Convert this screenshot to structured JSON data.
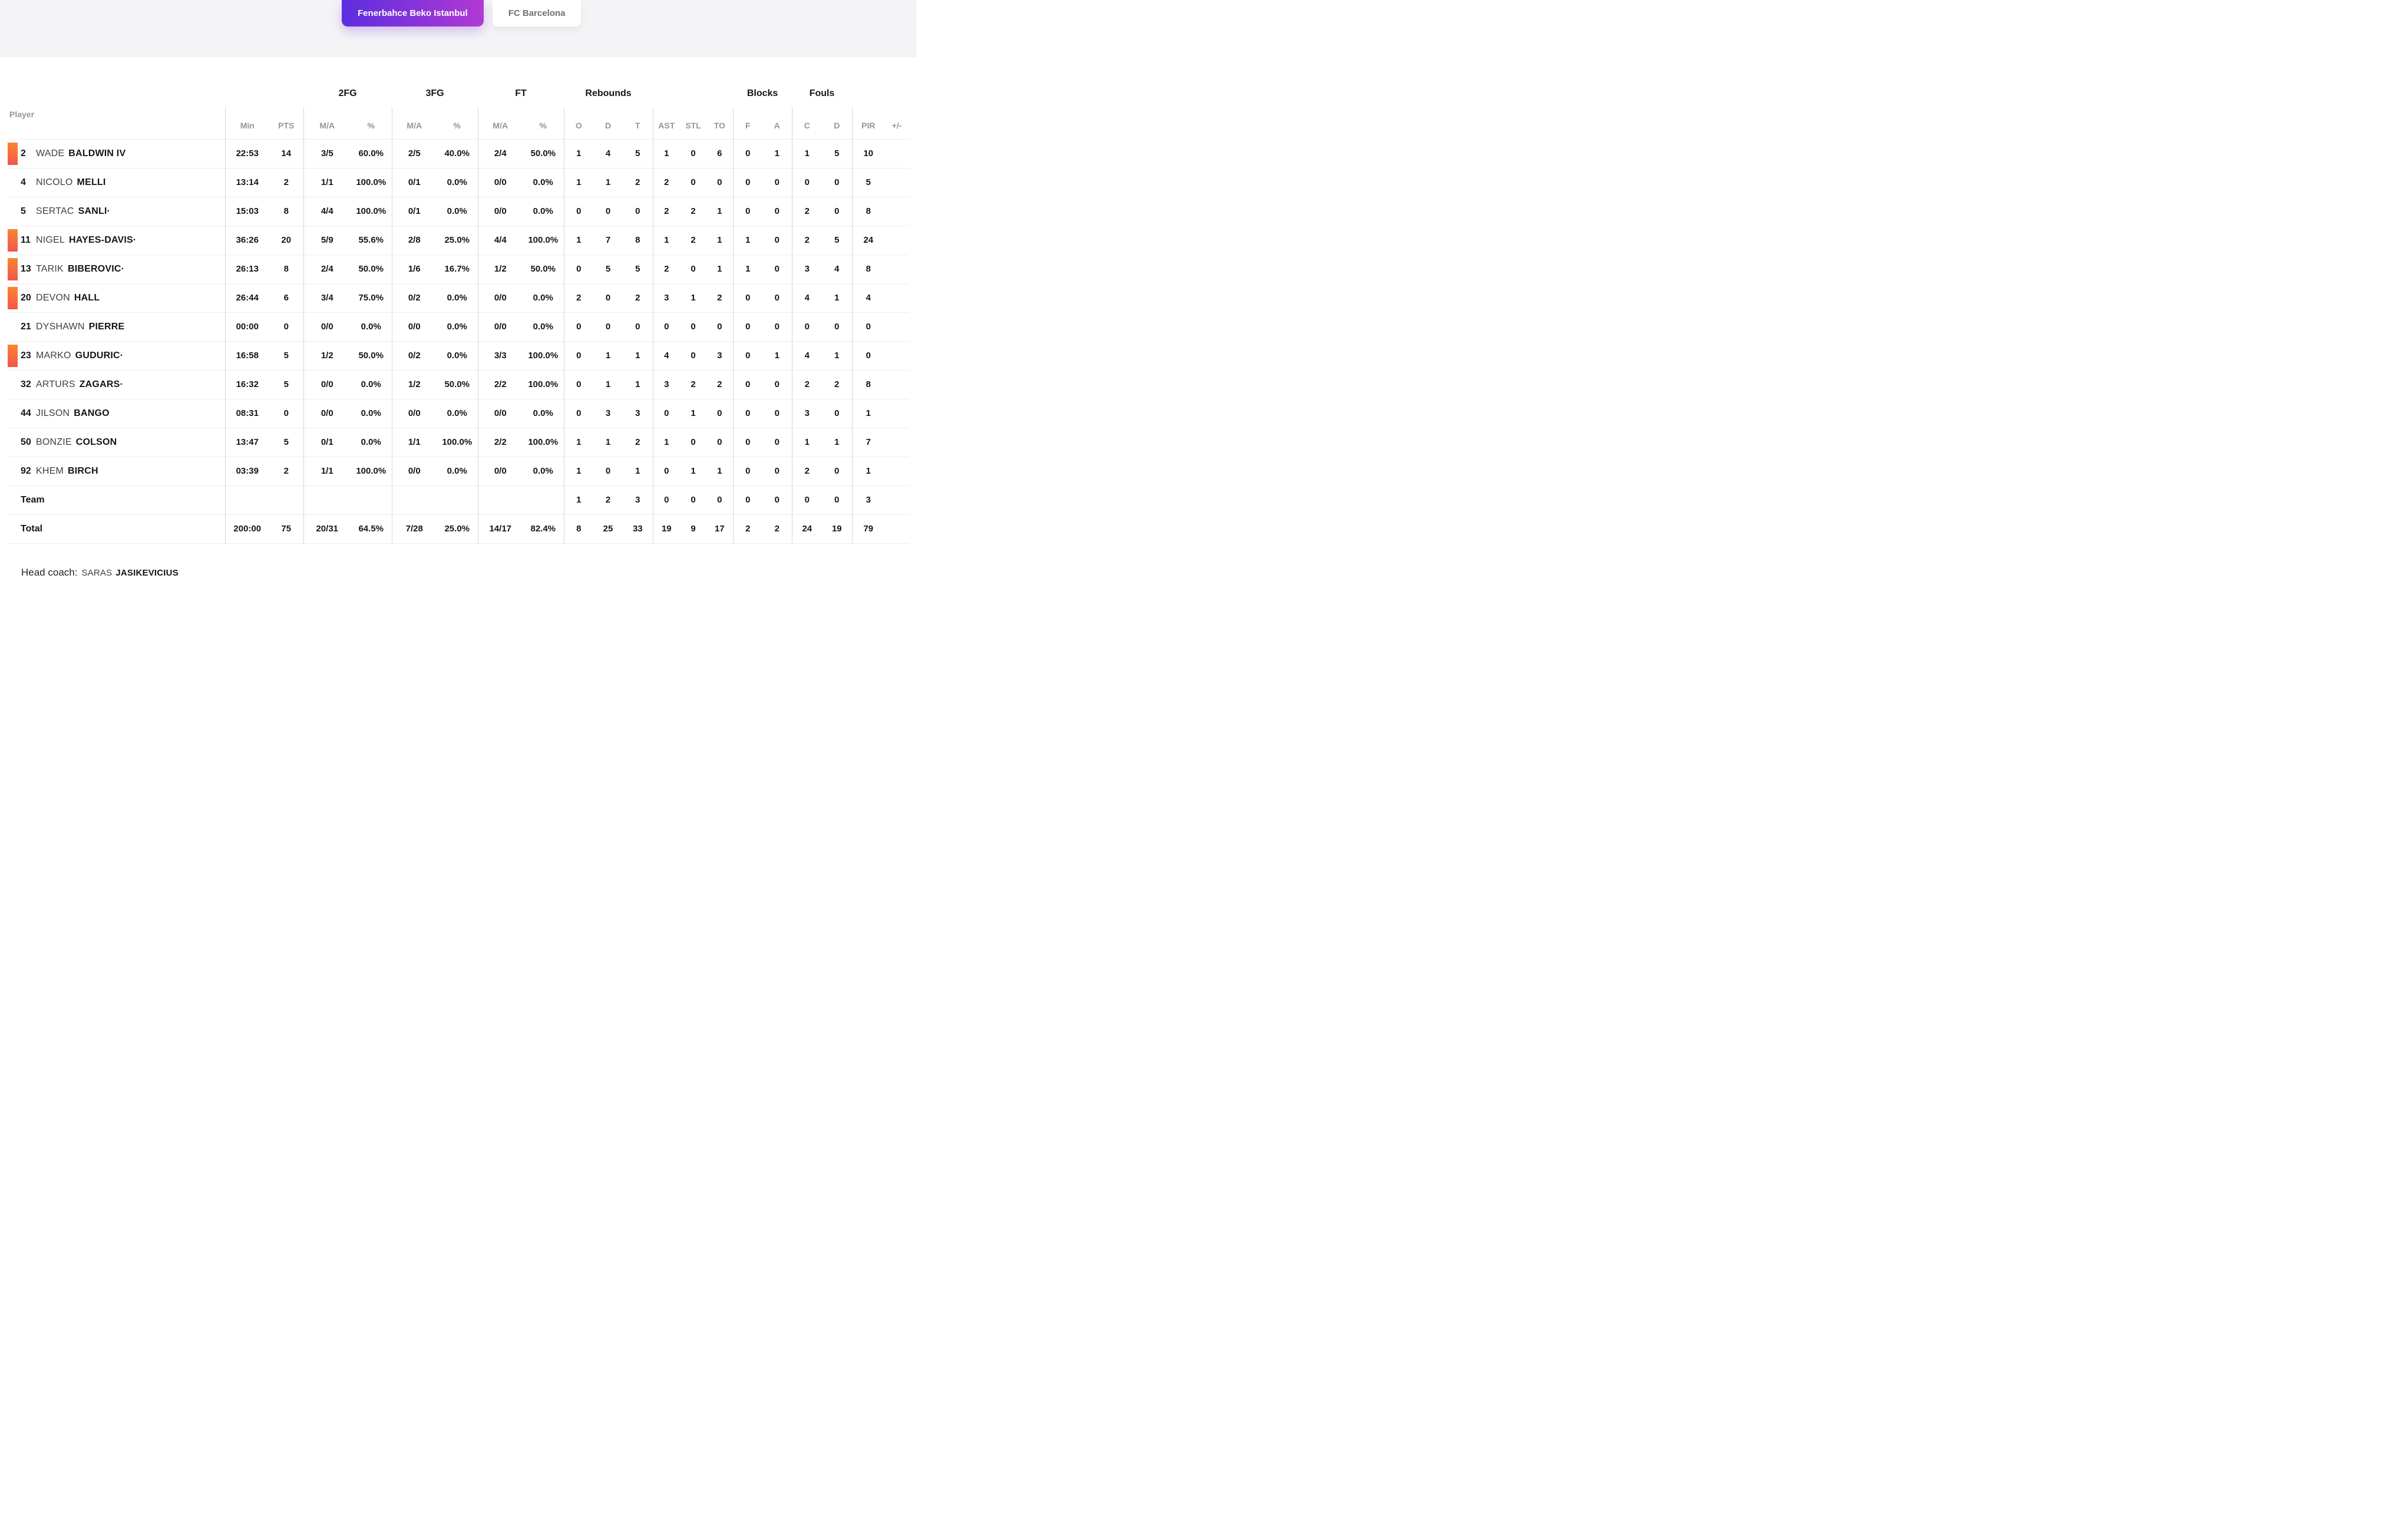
{
  "tabs": [
    {
      "label": "Fenerbahce Beko Istanbul",
      "active": true
    },
    {
      "label": "FC Barcelona",
      "active": false
    }
  ],
  "table": {
    "group_headers": [
      "2FG",
      "3FG",
      "FT",
      "Rebounds",
      "Blocks",
      "Fouls"
    ],
    "columns": {
      "player": "Player",
      "min": "Min",
      "pts": "PTS",
      "ma": "M/A",
      "pct": "%",
      "reb_o": "O",
      "reb_d": "D",
      "reb_t": "T",
      "ast": "AST",
      "stl": "STL",
      "to": "TO",
      "blk_f": "F",
      "blk_a": "A",
      "foul_c": "C",
      "foul_d": "D",
      "pir": "PIR",
      "plus_minus": "+/-"
    },
    "rows": [
      {
        "type": "player",
        "number": "2",
        "first": "WADE",
        "last": "BALDWIN IV",
        "starter": true,
        "min": "22:53",
        "pts": "14",
        "fg2": "3/5",
        "fg2pct": "60.0%",
        "fg3": "2/5",
        "fg3pct": "40.0%",
        "ft": "2/4",
        "ftpct": "50.0%",
        "ro": "1",
        "rd": "4",
        "rt": "5",
        "ast": "1",
        "stl": "0",
        "to": "6",
        "bf": "0",
        "ba": "1",
        "fc": "1",
        "fd": "5",
        "pir": "10",
        "pm": ""
      },
      {
        "type": "player",
        "number": "4",
        "first": "NICOLO",
        "last": "MELLI",
        "starter": false,
        "min": "13:14",
        "pts": "2",
        "fg2": "1/1",
        "fg2pct": "100.0%",
        "fg3": "0/1",
        "fg3pct": "0.0%",
        "ft": "0/0",
        "ftpct": "0.0%",
        "ro": "1",
        "rd": "1",
        "rt": "2",
        "ast": "2",
        "stl": "0",
        "to": "0",
        "bf": "0",
        "ba": "0",
        "fc": "0",
        "fd": "0",
        "pir": "5",
        "pm": ""
      },
      {
        "type": "player",
        "number": "5",
        "first": "SERTAC",
        "last": "SANLI·",
        "starter": false,
        "min": "15:03",
        "pts": "8",
        "fg2": "4/4",
        "fg2pct": "100.0%",
        "fg3": "0/1",
        "fg3pct": "0.0%",
        "ft": "0/0",
        "ftpct": "0.0%",
        "ro": "0",
        "rd": "0",
        "rt": "0",
        "ast": "2",
        "stl": "2",
        "to": "1",
        "bf": "0",
        "ba": "0",
        "fc": "2",
        "fd": "0",
        "pir": "8",
        "pm": ""
      },
      {
        "type": "player",
        "number": "11",
        "first": "NIGEL",
        "last": "HAYES-DAVIS·",
        "starter": true,
        "min": "36:26",
        "pts": "20",
        "fg2": "5/9",
        "fg2pct": "55.6%",
        "fg3": "2/8",
        "fg3pct": "25.0%",
        "ft": "4/4",
        "ftpct": "100.0%",
        "ro": "1",
        "rd": "7",
        "rt": "8",
        "ast": "1",
        "stl": "2",
        "to": "1",
        "bf": "1",
        "ba": "0",
        "fc": "2",
        "fd": "5",
        "pir": "24",
        "pm": ""
      },
      {
        "type": "player",
        "number": "13",
        "first": "TARIK",
        "last": "BIBEROVIC·",
        "starter": true,
        "min": "26:13",
        "pts": "8",
        "fg2": "2/4",
        "fg2pct": "50.0%",
        "fg3": "1/6",
        "fg3pct": "16.7%",
        "ft": "1/2",
        "ftpct": "50.0%",
        "ro": "0",
        "rd": "5",
        "rt": "5",
        "ast": "2",
        "stl": "0",
        "to": "1",
        "bf": "1",
        "ba": "0",
        "fc": "3",
        "fd": "4",
        "pir": "8",
        "pm": ""
      },
      {
        "type": "player",
        "number": "20",
        "first": "DEVON",
        "last": "HALL",
        "starter": true,
        "min": "26:44",
        "pts": "6",
        "fg2": "3/4",
        "fg2pct": "75.0%",
        "fg3": "0/2",
        "fg3pct": "0.0%",
        "ft": "0/0",
        "ftpct": "0.0%",
        "ro": "2",
        "rd": "0",
        "rt": "2",
        "ast": "3",
        "stl": "1",
        "to": "2",
        "bf": "0",
        "ba": "0",
        "fc": "4",
        "fd": "1",
        "pir": "4",
        "pm": ""
      },
      {
        "type": "player",
        "number": "21",
        "first": "DYSHAWN",
        "last": "PIERRE",
        "starter": false,
        "min": "00:00",
        "pts": "0",
        "fg2": "0/0",
        "fg2pct": "0.0%",
        "fg3": "0/0",
        "fg3pct": "0.0%",
        "ft": "0/0",
        "ftpct": "0.0%",
        "ro": "0",
        "rd": "0",
        "rt": "0",
        "ast": "0",
        "stl": "0",
        "to": "0",
        "bf": "0",
        "ba": "0",
        "fc": "0",
        "fd": "0",
        "pir": "0",
        "pm": ""
      },
      {
        "type": "player",
        "number": "23",
        "first": "MARKO",
        "last": "GUDURIC·",
        "starter": true,
        "min": "16:58",
        "pts": "5",
        "fg2": "1/2",
        "fg2pct": "50.0%",
        "fg3": "0/2",
        "fg3pct": "0.0%",
        "ft": "3/3",
        "ftpct": "100.0%",
        "ro": "0",
        "rd": "1",
        "rt": "1",
        "ast": "4",
        "stl": "0",
        "to": "3",
        "bf": "0",
        "ba": "1",
        "fc": "4",
        "fd": "1",
        "pir": "0",
        "pm": ""
      },
      {
        "type": "player",
        "number": "32",
        "first": "ARTURS",
        "last": "ZAGARS·",
        "starter": false,
        "min": "16:32",
        "pts": "5",
        "fg2": "0/0",
        "fg2pct": "0.0%",
        "fg3": "1/2",
        "fg3pct": "50.0%",
        "ft": "2/2",
        "ftpct": "100.0%",
        "ro": "0",
        "rd": "1",
        "rt": "1",
        "ast": "3",
        "stl": "2",
        "to": "2",
        "bf": "0",
        "ba": "0",
        "fc": "2",
        "fd": "2",
        "pir": "8",
        "pm": ""
      },
      {
        "type": "player",
        "number": "44",
        "first": "JILSON",
        "last": "BANGO",
        "starter": false,
        "min": "08:31",
        "pts": "0",
        "fg2": "0/0",
        "fg2pct": "0.0%",
        "fg3": "0/0",
        "fg3pct": "0.0%",
        "ft": "0/0",
        "ftpct": "0.0%",
        "ro": "0",
        "rd": "3",
        "rt": "3",
        "ast": "0",
        "stl": "1",
        "to": "0",
        "bf": "0",
        "ba": "0",
        "fc": "3",
        "fd": "0",
        "pir": "1",
        "pm": ""
      },
      {
        "type": "player",
        "number": "50",
        "first": "BONZIE",
        "last": "COLSON",
        "starter": false,
        "min": "13:47",
        "pts": "5",
        "fg2": "0/1",
        "fg2pct": "0.0%",
        "fg3": "1/1",
        "fg3pct": "100.0%",
        "ft": "2/2",
        "ftpct": "100.0%",
        "ro": "1",
        "rd": "1",
        "rt": "2",
        "ast": "1",
        "stl": "0",
        "to": "0",
        "bf": "0",
        "ba": "0",
        "fc": "1",
        "fd": "1",
        "pir": "7",
        "pm": ""
      },
      {
        "type": "player",
        "number": "92",
        "first": "KHEM",
        "last": "BIRCH",
        "starter": false,
        "min": "03:39",
        "pts": "2",
        "fg2": "1/1",
        "fg2pct": "100.0%",
        "fg3": "0/0",
        "fg3pct": "0.0%",
        "ft": "0/0",
        "ftpct": "0.0%",
        "ro": "1",
        "rd": "0",
        "rt": "1",
        "ast": "0",
        "stl": "1",
        "to": "1",
        "bf": "0",
        "ba": "0",
        "fc": "2",
        "fd": "0",
        "pir": "1",
        "pm": ""
      },
      {
        "type": "team",
        "label": "Team",
        "min": "",
        "pts": "",
        "fg2": "",
        "fg2pct": "",
        "fg3": "",
        "fg3pct": "",
        "ft": "",
        "ftpct": "",
        "ro": "1",
        "rd": "2",
        "rt": "3",
        "ast": "0",
        "stl": "0",
        "to": "0",
        "bf": "0",
        "ba": "0",
        "fc": "0",
        "fd": "0",
        "pir": "3",
        "pm": ""
      },
      {
        "type": "total",
        "label": "Total",
        "min": "200:00",
        "pts": "75",
        "fg2": "20/31",
        "fg2pct": "64.5%",
        "fg3": "7/28",
        "fg3pct": "25.0%",
        "ft": "14/17",
        "ftpct": "82.4%",
        "ro": "8",
        "rd": "25",
        "rt": "33",
        "ast": "19",
        "stl": "9",
        "to": "17",
        "bf": "2",
        "ba": "2",
        "fc": "24",
        "fd": "19",
        "pir": "79",
        "pm": ""
      }
    ]
  },
  "footer": {
    "head_coach_label": "Head coach:",
    "coach_first": "SARAS",
    "coach_last": "JASIKEVICIUS"
  },
  "colors": {
    "tab_active_gradient_start": "#5c2ee0",
    "tab_active_gradient_end": "#b13ad2",
    "tab_active_text": "#ffffff",
    "tab_inactive_text": "#6f6f75",
    "topbar_bg": "#f4f4f6",
    "starter_bar_top": "#f8862f",
    "starter_bar_bottom": "#f2564d",
    "header_text": "#95959b",
    "text_primary": "#151517",
    "row_divider": "#ececee",
    "column_divider": "#d6d6d8"
  }
}
